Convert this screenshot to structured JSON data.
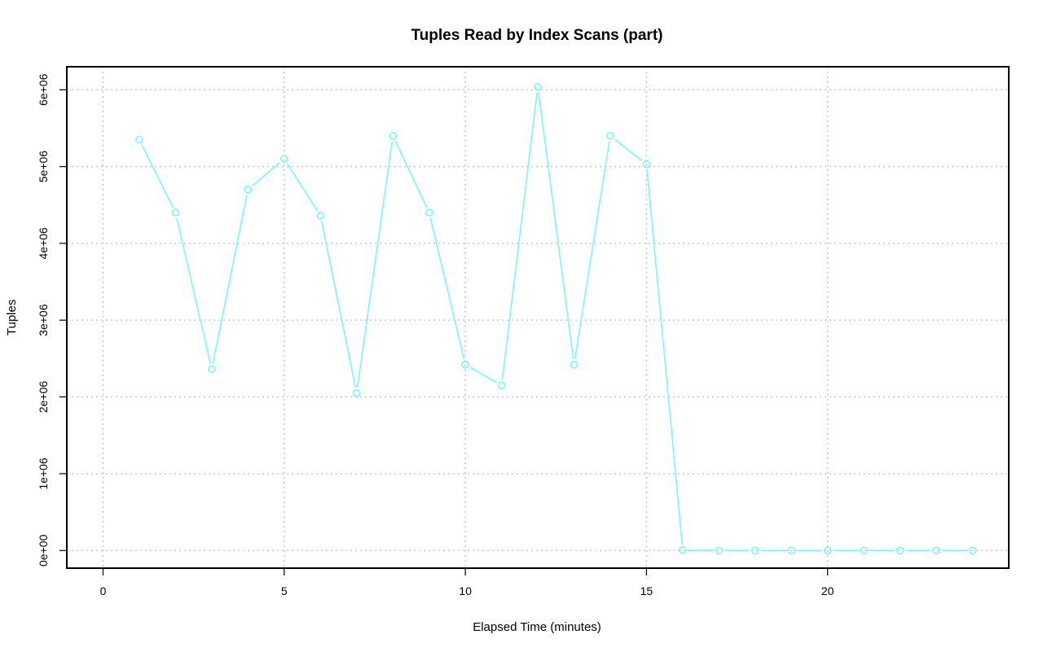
{
  "chart_data": {
    "type": "line",
    "title": "Tuples Read by Index Scans (part)",
    "xlabel": "Elapsed Time (minutes)",
    "ylabel": "Tuples",
    "xlim": [
      -1,
      25
    ],
    "ylim": [
      -230000,
      6300000
    ],
    "x_ticks": [
      0,
      5,
      10,
      15,
      20
    ],
    "x_tick_labels": [
      "0",
      "5",
      "10",
      "15",
      "20"
    ],
    "y_ticks": [
      0,
      1000000,
      2000000,
      3000000,
      4000000,
      5000000,
      6000000
    ],
    "y_tick_labels": [
      "0e+00",
      "1e+06",
      "2e+06",
      "3e+06",
      "4e+06",
      "5e+06",
      "6e+06"
    ],
    "grid": true,
    "color": "#7ff5f5",
    "series": [
      {
        "x": [
          1,
          2,
          3,
          4,
          5,
          6,
          7,
          8,
          9,
          10,
          11,
          12,
          13,
          14,
          15,
          16,
          17,
          18,
          19,
          20,
          21,
          22,
          23,
          24
        ],
        "values": [
          5350000,
          4400000,
          2360000,
          4700000,
          5100000,
          4360000,
          2050000,
          5400000,
          4400000,
          2420000,
          2150000,
          6040000,
          2420000,
          5400000,
          5030000,
          5000,
          0,
          0,
          0,
          0,
          0,
          0,
          0,
          0
        ]
      }
    ]
  }
}
